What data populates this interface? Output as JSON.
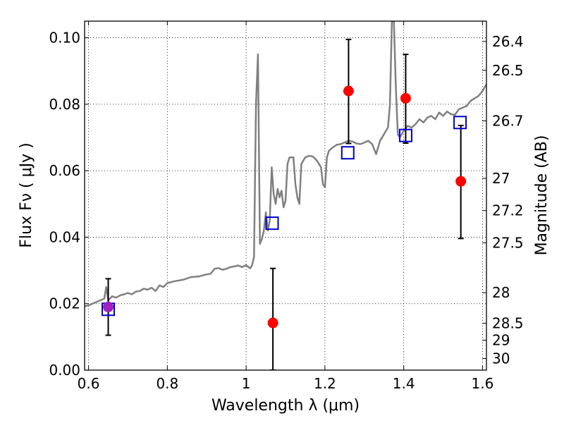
{
  "chart_data": {
    "type": "scatter",
    "xlabel": "Wavelength  λ (μm)",
    "ylabel": "Flux  Fν  ( μJy )",
    "y2label": "Magnitude (AB)",
    "xlim": [
      0.59,
      1.61
    ],
    "ylim": [
      0.0,
      0.105
    ],
    "grid": true,
    "x_ticks": [
      {
        "value": 0.6,
        "label": "0.6"
      },
      {
        "value": 0.8,
        "label": "0.8"
      },
      {
        "value": 1.0,
        "label": "1"
      },
      {
        "value": 1.2,
        "label": "1.2"
      },
      {
        "value": 1.4,
        "label": "1.4"
      },
      {
        "value": 1.6,
        "label": "1.6"
      }
    ],
    "y_ticks": [
      {
        "value": 0.0,
        "label": "0.00"
      },
      {
        "value": 0.02,
        "label": "0.02"
      },
      {
        "value": 0.04,
        "label": "0.04"
      },
      {
        "value": 0.06,
        "label": "0.06"
      },
      {
        "value": 0.08,
        "label": "0.08"
      },
      {
        "value": 0.1,
        "label": "0.10"
      }
    ],
    "mag_ticks": [
      {
        "value": 0.0989,
        "label": "26.4"
      },
      {
        "value": 0.0902,
        "label": "26.5"
      },
      {
        "value": 0.075,
        "label": "26.7"
      },
      {
        "value": 0.0577,
        "label": "27"
      },
      {
        "value": 0.048,
        "label": "27.2"
      },
      {
        "value": 0.0383,
        "label": "27.5"
      },
      {
        "value": 0.0233,
        "label": "28"
      },
      {
        "value": 0.0141,
        "label": "28.5"
      },
      {
        "value": 0.009,
        "label": "29"
      },
      {
        "value": 0.0035,
        "label": "30"
      }
    ],
    "spectrum": {
      "color": "#808080",
      "points": [
        [
          0.59,
          0.0192
        ],
        [
          0.6,
          0.0195
        ],
        [
          0.61,
          0.02
        ],
        [
          0.62,
          0.0205
        ],
        [
          0.63,
          0.021
        ],
        [
          0.64,
          0.0215
        ],
        [
          0.645,
          0.025
        ],
        [
          0.65,
          0.021
        ],
        [
          0.66,
          0.0222
        ],
        [
          0.67,
          0.0218
        ],
        [
          0.68,
          0.0225
        ],
        [
          0.69,
          0.0228
        ],
        [
          0.7,
          0.0232
        ],
        [
          0.71,
          0.0228
        ],
        [
          0.72,
          0.0236
        ],
        [
          0.73,
          0.0238
        ],
        [
          0.74,
          0.0245
        ],
        [
          0.75,
          0.0242
        ],
        [
          0.76,
          0.0248
        ],
        [
          0.77,
          0.0238
        ],
        [
          0.78,
          0.0255
        ],
        [
          0.79,
          0.025
        ],
        [
          0.8,
          0.0262
        ],
        [
          0.82,
          0.0268
        ],
        [
          0.84,
          0.0272
        ],
        [
          0.86,
          0.028
        ],
        [
          0.88,
          0.0282
        ],
        [
          0.9,
          0.0288
        ],
        [
          0.91,
          0.029
        ],
        [
          0.92,
          0.0305
        ],
        [
          0.93,
          0.0307
        ],
        [
          0.94,
          0.0302
        ],
        [
          0.95,
          0.0305
        ],
        [
          0.96,
          0.031
        ],
        [
          0.97,
          0.0312
        ],
        [
          0.98,
          0.0315
        ],
        [
          0.99,
          0.031
        ],
        [
          1.0,
          0.0316
        ],
        [
          1.01,
          0.0306
        ],
        [
          1.015,
          0.0315
        ],
        [
          1.02,
          0.034
        ],
        [
          1.025,
          0.08
        ],
        [
          1.03,
          0.095
        ],
        [
          1.035,
          0.038
        ],
        [
          1.04,
          0.0395
        ],
        [
          1.045,
          0.042
        ],
        [
          1.05,
          0.0475
        ],
        [
          1.055,
          0.042
        ],
        [
          1.06,
          0.045
        ],
        [
          1.065,
          0.061
        ],
        [
          1.07,
          0.053
        ],
        [
          1.075,
          0.05
        ],
        [
          1.08,
          0.0545
        ],
        [
          1.085,
          0.052
        ],
        [
          1.09,
          0.054
        ],
        [
          1.095,
          0.049
        ],
        [
          1.1,
          0.051
        ],
        [
          1.105,
          0.062
        ],
        [
          1.11,
          0.064
        ],
        [
          1.12,
          0.064
        ],
        [
          1.125,
          0.056
        ],
        [
          1.13,
          0.052
        ],
        [
          1.135,
          0.05
        ],
        [
          1.14,
          0.062
        ],
        [
          1.15,
          0.064
        ],
        [
          1.16,
          0.0645
        ],
        [
          1.17,
          0.0642
        ],
        [
          1.18,
          0.063
        ],
        [
          1.19,
          0.061
        ],
        [
          1.195,
          0.056
        ],
        [
          1.2,
          0.055
        ],
        [
          1.205,
          0.064
        ],
        [
          1.21,
          0.066
        ],
        [
          1.22,
          0.067
        ],
        [
          1.23,
          0.0678
        ],
        [
          1.24,
          0.068
        ],
        [
          1.25,
          0.0685
        ],
        [
          1.26,
          0.069
        ],
        [
          1.27,
          0.0688
        ],
        [
          1.28,
          0.0682
        ],
        [
          1.29,
          0.068
        ],
        [
          1.3,
          0.0685
        ],
        [
          1.31,
          0.069
        ],
        [
          1.32,
          0.068
        ],
        [
          1.33,
          0.065
        ],
        [
          1.34,
          0.069
        ],
        [
          1.35,
          0.071
        ],
        [
          1.36,
          0.073
        ],
        [
          1.365,
          0.08
        ],
        [
          1.37,
          0.105
        ],
        [
          1.375,
          0.105
        ],
        [
          1.38,
          0.085
        ],
        [
          1.385,
          0.071
        ],
        [
          1.39,
          0.07
        ],
        [
          1.4,
          0.072
        ],
        [
          1.41,
          0.0735
        ],
        [
          1.42,
          0.073
        ],
        [
          1.43,
          0.074
        ],
        [
          1.44,
          0.0755
        ],
        [
          1.45,
          0.0745
        ],
        [
          1.46,
          0.076
        ],
        [
          1.47,
          0.0765
        ],
        [
          1.48,
          0.0755
        ],
        [
          1.49,
          0.0775
        ],
        [
          1.5,
          0.0765
        ],
        [
          1.51,
          0.0778
        ],
        [
          1.52,
          0.077
        ],
        [
          1.53,
          0.0768
        ],
        [
          1.54,
          0.0785
        ],
        [
          1.55,
          0.079
        ],
        [
          1.56,
          0.0795
        ],
        [
          1.57,
          0.081
        ],
        [
          1.58,
          0.0818
        ],
        [
          1.59,
          0.0825
        ],
        [
          1.6,
          0.084
        ],
        [
          1.61,
          0.086
        ]
      ]
    },
    "synthetic_photometry": {
      "color": "#0000cc",
      "points": [
        {
          "x": 0.65,
          "y": 0.0183
        },
        {
          "x": 1.066,
          "y": 0.0442
        },
        {
          "x": 1.258,
          "y": 0.0654
        },
        {
          "x": 1.405,
          "y": 0.0706
        },
        {
          "x": 1.543,
          "y": 0.0745
        }
      ]
    },
    "observed": {
      "color": "#ff0000",
      "points": [
        {
          "x": 0.65,
          "y": 0.019,
          "err": [
            0.0105,
            0.0275
          ]
        },
        {
          "x": 1.068,
          "y": 0.0142,
          "err": [
            0.0,
            0.0306
          ]
        },
        {
          "x": 1.26,
          "y": 0.084,
          "err": [
            0.0682,
            0.0995
          ]
        },
        {
          "x": 1.405,
          "y": 0.0818,
          "err": [
            0.0683,
            0.095
          ]
        },
        {
          "x": 1.545,
          "y": 0.0568,
          "err": [
            0.0396,
            0.0736
          ]
        }
      ]
    },
    "highlight_color": "#a020c0"
  }
}
